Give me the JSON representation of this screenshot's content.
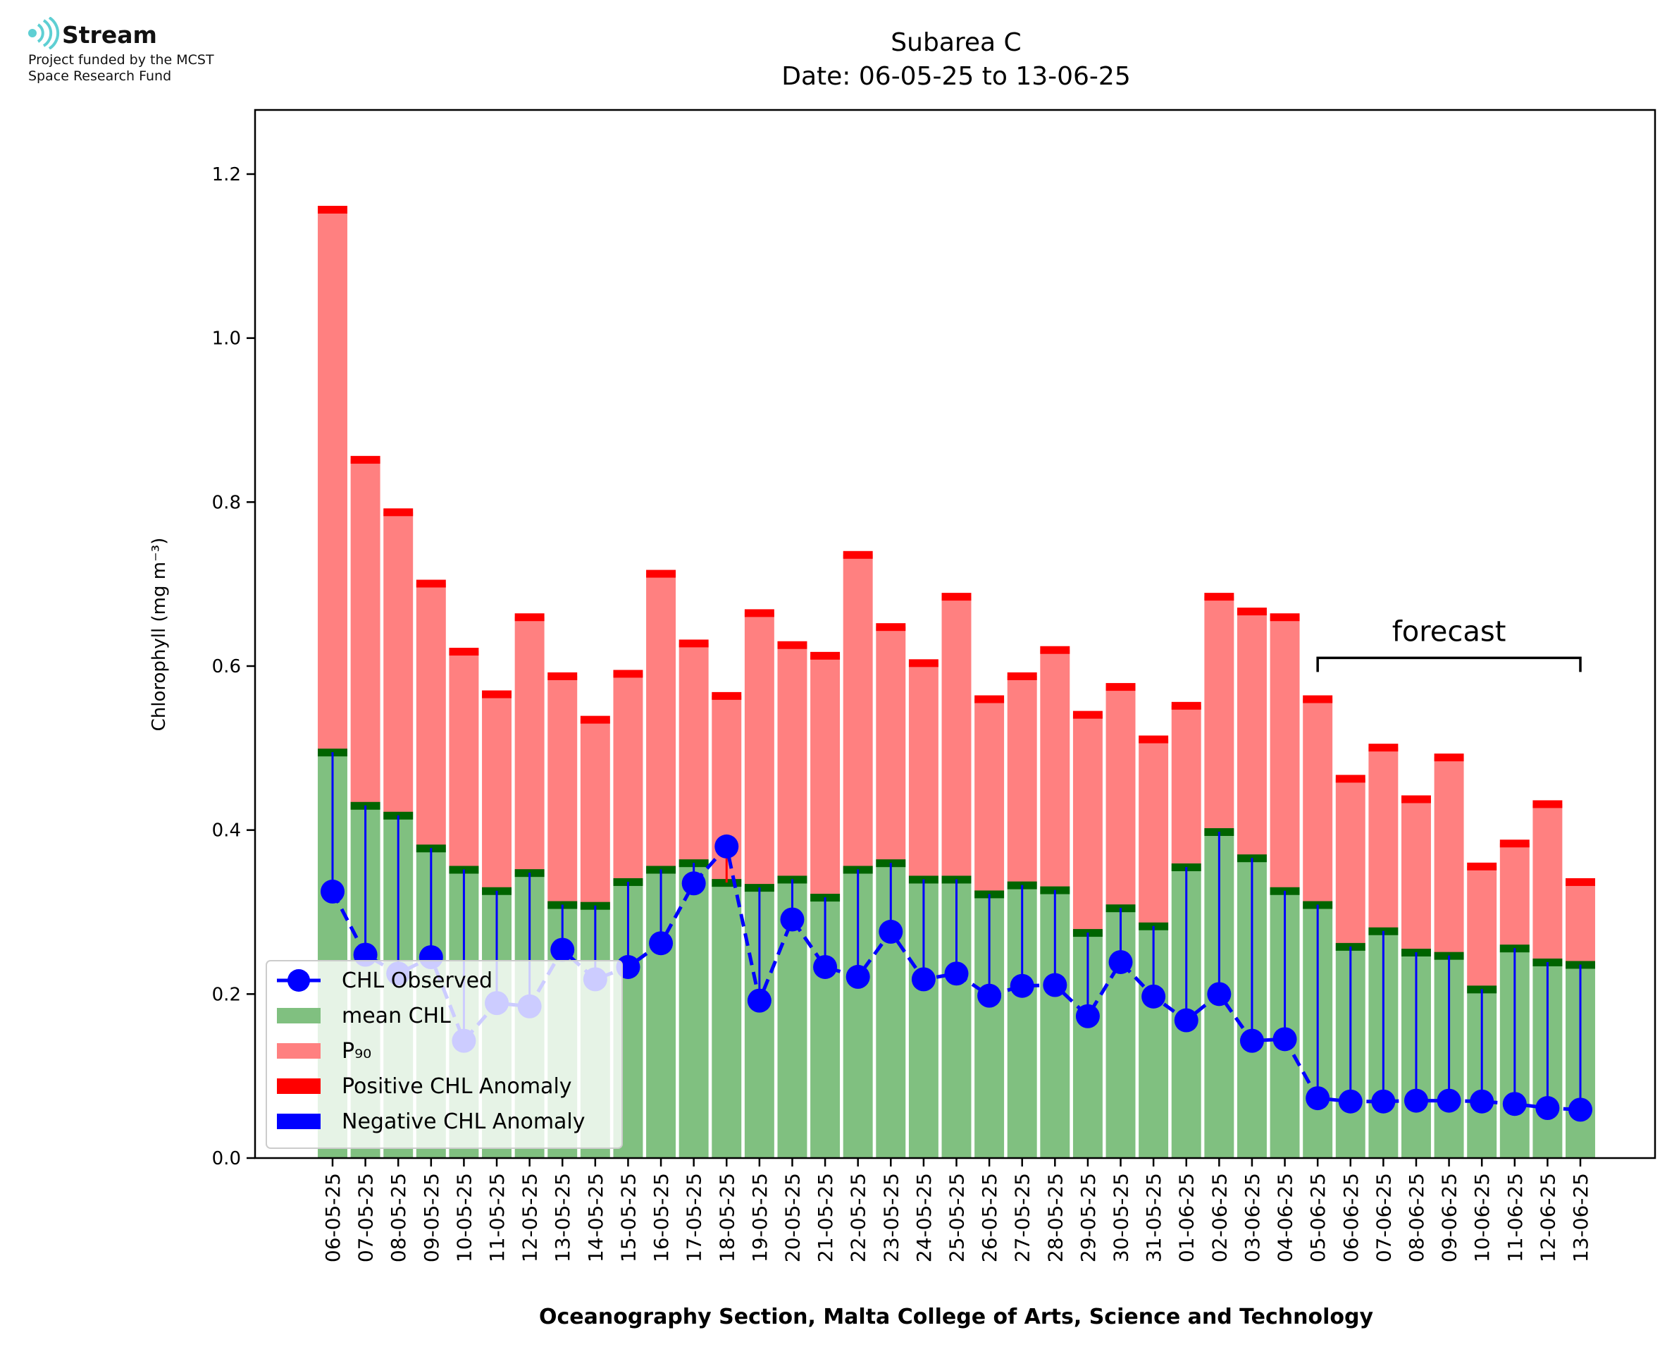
{
  "logo": {
    "name": "Stream",
    "tagline": "Project funded by the MCST\nSpace Research Fund",
    "icon": "stream-waves-icon",
    "color": "#5ecfd3"
  },
  "chart_data": {
    "type": "bar",
    "title": "Subarea C",
    "subtitle": "Date: 06-05-25 to 13-06-25",
    "xlabel": "Oceanography Section, Malta College of Arts, Science and Technology",
    "ylabel": "Chlorophyll (mg m⁻³)",
    "ylim": [
      0,
      1.28
    ],
    "yticks": [
      "0.0",
      "0.2",
      "0.4",
      "0.6",
      "0.8",
      "1.0",
      "1.2"
    ],
    "grid": false,
    "legend_position": "lower-left",
    "colors": {
      "mean": "#80c080",
      "p90": "#ff8080",
      "positive_anomaly": "#ff0000",
      "negative_anomaly": "#0000ff",
      "observed": "#0000ff",
      "mean_marker": "#006400"
    },
    "categories": [
      "06-05-25",
      "07-05-25",
      "08-05-25",
      "09-05-25",
      "10-05-25",
      "11-05-25",
      "12-05-25",
      "13-05-25",
      "14-05-25",
      "15-05-25",
      "16-05-25",
      "17-05-25",
      "18-05-25",
      "19-05-25",
      "20-05-25",
      "21-05-25",
      "22-05-25",
      "23-05-25",
      "24-05-25",
      "25-05-25",
      "26-05-25",
      "27-05-25",
      "28-05-25",
      "29-05-25",
      "30-05-25",
      "31-05-25",
      "01-06-25",
      "02-06-25",
      "03-06-25",
      "04-06-25",
      "05-06-25",
      "06-06-25",
      "07-06-25",
      "08-06-25",
      "09-06-25",
      "10-06-25",
      "11-06-25",
      "12-06-25",
      "13-06-25"
    ],
    "series": [
      {
        "name": "mean CHL",
        "values": [
          0.495,
          0.43,
          0.418,
          0.378,
          0.352,
          0.326,
          0.348,
          0.309,
          0.308,
          0.337,
          0.352,
          0.36,
          0.336,
          0.33,
          0.34,
          0.318,
          0.352,
          0.36,
          0.34,
          0.34,
          0.322,
          0.333,
          0.327,
          0.275,
          0.305,
          0.283,
          0.355,
          0.398,
          0.366,
          0.326,
          0.309,
          0.258,
          0.277,
          0.251,
          0.247,
          0.206,
          0.256,
          0.239,
          0.236
        ]
      },
      {
        "name": "P₉₀",
        "values": [
          1.157,
          0.852,
          0.788,
          0.701,
          0.618,
          0.566,
          0.66,
          0.588,
          0.535,
          0.591,
          0.713,
          0.628,
          0.564,
          0.665,
          0.626,
          0.613,
          0.736,
          0.648,
          0.604,
          0.685,
          0.56,
          0.588,
          0.62,
          0.541,
          0.575,
          0.511,
          0.552,
          0.685,
          0.667,
          0.66,
          0.56,
          0.463,
          0.501,
          0.438,
          0.489,
          0.356,
          0.384,
          0.432,
          0.337
        ]
      },
      {
        "name": "CHL Observed",
        "values": [
          0.325,
          0.248,
          0.225,
          0.245,
          0.143,
          0.189,
          0.185,
          0.254,
          0.218,
          0.233,
          0.262,
          0.335,
          0.38,
          0.192,
          0.291,
          0.233,
          0.221,
          0.276,
          0.218,
          0.225,
          0.198,
          0.21,
          0.211,
          0.173,
          0.239,
          0.197,
          0.168,
          0.2,
          0.143,
          0.145,
          0.073,
          0.069,
          0.069,
          0.07,
          0.07,
          0.069,
          0.066,
          0.061,
          0.059
        ]
      }
    ],
    "legend": [
      "CHL Observed",
      "mean CHL",
      "P₉₀",
      "Positive CHL Anomaly",
      "Negative CHL Anomaly"
    ],
    "annotation": {
      "text": "forecast",
      "from": "05-06-25",
      "to": "13-06-25",
      "y": 0.61
    }
  }
}
